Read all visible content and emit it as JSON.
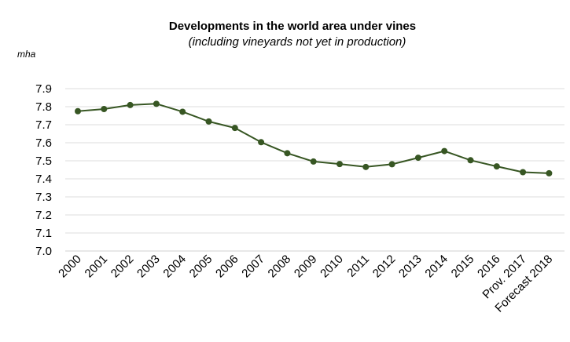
{
  "chart_data": {
    "type": "line",
    "title": "Developments in the world area under vines",
    "subtitle": "(including vineyards not yet in production)",
    "ylabel": "mha",
    "xlabel": "",
    "ylim": [
      7.0,
      7.9
    ],
    "yticks": [
      "7.0",
      "7.1",
      "7.2",
      "7.3",
      "7.4",
      "7.5",
      "7.6",
      "7.7",
      "7.8",
      "7.9"
    ],
    "grid": true,
    "categories": [
      "2000",
      "2001",
      "2002",
      "2003",
      "2004",
      "2005",
      "2006",
      "2007",
      "2008",
      "2009",
      "2010",
      "2011",
      "2012",
      "2013",
      "2014",
      "2015",
      "2016",
      "Prov. 2017",
      "Forecast 2018"
    ],
    "series": [
      {
        "name": "World area under vines",
        "color": "#375623",
        "values": [
          7.775,
          7.787,
          7.809,
          7.816,
          7.772,
          7.718,
          7.682,
          7.603,
          7.542,
          7.496,
          7.482,
          7.466,
          7.481,
          7.517,
          7.554,
          7.503,
          7.469,
          7.437,
          7.431
        ]
      }
    ]
  }
}
